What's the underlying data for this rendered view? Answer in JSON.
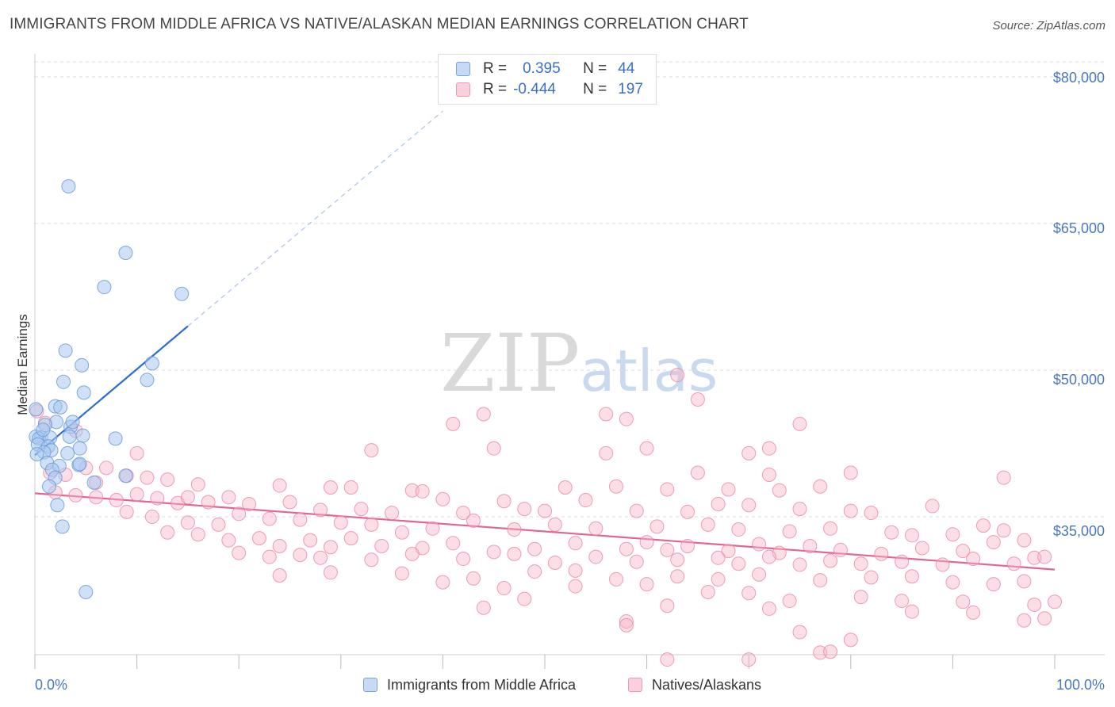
{
  "header": {
    "title": "IMMIGRANTS FROM MIDDLE AFRICA VS NATIVE/ALASKAN MEDIAN EARNINGS CORRELATION CHART",
    "source": "Source: ZipAtlas.com"
  },
  "watermark": {
    "zip": "ZIP",
    "atlas": "atlas"
  },
  "legend": {
    "rows": [
      {
        "r_label": "R =",
        "r_value": "0.395",
        "n_label": "N =",
        "n_value": "44",
        "color": "#a9c8f0"
      },
      {
        "r_label": "R =",
        "r_value": "-0.444",
        "n_label": "N =",
        "n_value": "197",
        "color": "#f7b6c8"
      }
    ]
  },
  "bottom_legend": {
    "series1": "Immigrants from Middle Africa",
    "series2": "Natives/Alaskans"
  },
  "colors": {
    "blue_fill": "#a9c8f0",
    "blue_stroke": "#6a9bd8",
    "blue_line": "#2f6fd0",
    "pink_fill": "#f7b6c8",
    "pink_stroke": "#e887a6",
    "pink_line": "#e36592",
    "tick_text": "#4a78c0",
    "grid": "#dddddd"
  },
  "chart_data": {
    "type": "scatter",
    "title": "IMMIGRANTS FROM MIDDLE AFRICA VS NATIVE/ALASKAN MEDIAN EARNINGS CORRELATION CHART",
    "xlabel": "",
    "ylabel": "Median Earnings",
    "xlim": [
      0,
      100
    ],
    "ylim": [
      20000,
      82000
    ],
    "x_tick_labels": [
      "0.0%",
      "100.0%"
    ],
    "y_ticks": [
      35000,
      50000,
      65000,
      80000
    ],
    "y_tick_labels": [
      "$35,000",
      "$50,000",
      "$65,000",
      "$80,000"
    ],
    "grid": true,
    "legend_placement": "top-center",
    "series": [
      {
        "name": "Immigrants from Middle Africa",
        "R": 0.395,
        "N": 44,
        "trend": {
          "x": [
            0,
            15
          ],
          "y": [
            41300,
            54500
          ],
          "dashed_extension_to": [
            40,
            76500
          ]
        },
        "points": [
          [
            3.3,
            68800
          ],
          [
            8.9,
            62000
          ],
          [
            6.8,
            58500
          ],
          [
            14.4,
            57800
          ],
          [
            3.0,
            52000
          ],
          [
            4.6,
            50500
          ],
          [
            11.5,
            50700
          ],
          [
            11.0,
            49000
          ],
          [
            2.8,
            48800
          ],
          [
            4.8,
            47700
          ],
          [
            2.0,
            46300
          ],
          [
            2.5,
            46200
          ],
          [
            0.1,
            46000
          ],
          [
            2.1,
            44700
          ],
          [
            1.0,
            44400
          ],
          [
            3.5,
            44200
          ],
          [
            3.7,
            44700
          ],
          [
            0.6,
            43100
          ],
          [
            0.1,
            43200
          ],
          [
            0.4,
            43000
          ],
          [
            1.5,
            43100
          ],
          [
            3.4,
            43200
          ],
          [
            4.7,
            43300
          ],
          [
            7.9,
            43000
          ],
          [
            0.3,
            42400
          ],
          [
            1.3,
            42200
          ],
          [
            1.6,
            41800
          ],
          [
            0.9,
            41600
          ],
          [
            0.2,
            41400
          ],
          [
            3.2,
            41500
          ],
          [
            4.4,
            42000
          ],
          [
            1.2,
            40500
          ],
          [
            2.4,
            40200
          ],
          [
            4.3,
            40300
          ],
          [
            4.4,
            40400
          ],
          [
            1.7,
            39800
          ],
          [
            2.0,
            39000
          ],
          [
            8.9,
            39200
          ],
          [
            5.8,
            38500
          ],
          [
            1.4,
            38100
          ],
          [
            2.2,
            36200
          ],
          [
            2.7,
            34000
          ],
          [
            5.0,
            27300
          ],
          [
            0.8,
            43900
          ]
        ]
      },
      {
        "name": "Natives/Alaskans",
        "R": -0.444,
        "N": 197,
        "trend": {
          "x": [
            0,
            100
          ],
          "y": [
            37400,
            29600
          ]
        },
        "points": [
          [
            0.2,
            45800
          ],
          [
            1.0,
            44600
          ],
          [
            4.0,
            43800
          ],
          [
            63.0,
            49500
          ],
          [
            65.0,
            47000
          ],
          [
            75.0,
            44500
          ],
          [
            44.0,
            45500
          ],
          [
            56.0,
            45500
          ],
          [
            58.0,
            45000
          ],
          [
            41.0,
            44500
          ],
          [
            60.0,
            42000
          ],
          [
            72.0,
            42000
          ],
          [
            45.0,
            42000
          ],
          [
            33.0,
            41800
          ],
          [
            56.0,
            41500
          ],
          [
            70.0,
            41500
          ],
          [
            10.0,
            41500
          ],
          [
            65.0,
            39500
          ],
          [
            72.0,
            39300
          ],
          [
            80.0,
            39500
          ],
          [
            95.0,
            39000
          ],
          [
            5.0,
            40000
          ],
          [
            7.0,
            40000
          ],
          [
            9.0,
            39200
          ],
          [
            11.0,
            39000
          ],
          [
            13.0,
            38800
          ],
          [
            1.5,
            39500
          ],
          [
            3.0,
            39300
          ],
          [
            6.0,
            38500
          ],
          [
            16.0,
            38300
          ],
          [
            24.0,
            38200
          ],
          [
            29.0,
            38000
          ],
          [
            31.0,
            38000
          ],
          [
            37.0,
            37700
          ],
          [
            38.0,
            37600
          ],
          [
            52.0,
            38000
          ],
          [
            57.0,
            38100
          ],
          [
            62.0,
            37800
          ],
          [
            68.0,
            37800
          ],
          [
            73.0,
            37700
          ],
          [
            77.0,
            38100
          ],
          [
            88.0,
            36100
          ],
          [
            4.0,
            37200
          ],
          [
            6.0,
            37000
          ],
          [
            8.0,
            36700
          ],
          [
            10.0,
            37300
          ],
          [
            12.0,
            36900
          ],
          [
            14.0,
            36400
          ],
          [
            17.0,
            36500
          ],
          [
            19.0,
            37000
          ],
          [
            21.0,
            36300
          ],
          [
            25.0,
            36500
          ],
          [
            28.0,
            35700
          ],
          [
            32.0,
            35800
          ],
          [
            35.0,
            35400
          ],
          [
            40.0,
            36800
          ],
          [
            42.0,
            35400
          ],
          [
            46.0,
            36600
          ],
          [
            48.0,
            35800
          ],
          [
            50.0,
            35600
          ],
          [
            54.0,
            36700
          ],
          [
            59.0,
            35600
          ],
          [
            64.0,
            35500
          ],
          [
            67.0,
            36300
          ],
          [
            70.0,
            36200
          ],
          [
            75.0,
            35800
          ],
          [
            80.0,
            35600
          ],
          [
            82.0,
            35400
          ],
          [
            9.0,
            35500
          ],
          [
            11.5,
            35000
          ],
          [
            15.0,
            34400
          ],
          [
            18.0,
            34200
          ],
          [
            20.0,
            35300
          ],
          [
            23.0,
            34800
          ],
          [
            26.0,
            34700
          ],
          [
            30.0,
            34400
          ],
          [
            33.0,
            34200
          ],
          [
            36.0,
            33400
          ],
          [
            39.0,
            33800
          ],
          [
            43.0,
            34600
          ],
          [
            47.0,
            33700
          ],
          [
            51.0,
            34200
          ],
          [
            55.0,
            33800
          ],
          [
            61.0,
            34000
          ],
          [
            66.0,
            34200
          ],
          [
            69.0,
            33700
          ],
          [
            74.0,
            33500
          ],
          [
            78.0,
            33800
          ],
          [
            84.0,
            33400
          ],
          [
            86.0,
            33100
          ],
          [
            90.0,
            33200
          ],
          [
            93.0,
            34100
          ],
          [
            95.0,
            33600
          ],
          [
            97.0,
            32600
          ],
          [
            13.0,
            33400
          ],
          [
            16.0,
            33200
          ],
          [
            19.0,
            32600
          ],
          [
            22.0,
            32800
          ],
          [
            24.0,
            32000
          ],
          [
            27.0,
            32600
          ],
          [
            29.0,
            31900
          ],
          [
            31.0,
            32800
          ],
          [
            34.0,
            32000
          ],
          [
            38.0,
            31800
          ],
          [
            41.0,
            32300
          ],
          [
            45.0,
            31400
          ],
          [
            49.0,
            31700
          ],
          [
            53.0,
            32300
          ],
          [
            58.0,
            31700
          ],
          [
            60.0,
            32400
          ],
          [
            62.0,
            31600
          ],
          [
            64.0,
            32000
          ],
          [
            68.0,
            31500
          ],
          [
            71.0,
            32200
          ],
          [
            73.0,
            31300
          ],
          [
            76.0,
            32000
          ],
          [
            79.0,
            31600
          ],
          [
            83.0,
            31200
          ],
          [
            87.0,
            31800
          ],
          [
            91.0,
            31500
          ],
          [
            94.0,
            32400
          ],
          [
            98.0,
            30800
          ],
          [
            20.0,
            31300
          ],
          [
            23.0,
            30900
          ],
          [
            26.0,
            31100
          ],
          [
            28.0,
            30800
          ],
          [
            33.0,
            30600
          ],
          [
            37.0,
            31200
          ],
          [
            42.0,
            30700
          ],
          [
            47.0,
            31200
          ],
          [
            51.0,
            30300
          ],
          [
            55.0,
            30900
          ],
          [
            59.0,
            30400
          ],
          [
            63.0,
            30600
          ],
          [
            67.0,
            30800
          ],
          [
            69.0,
            30200
          ],
          [
            72.0,
            30900
          ],
          [
            75.0,
            30100
          ],
          [
            78.0,
            30500
          ],
          [
            81.0,
            30200
          ],
          [
            85.0,
            30400
          ],
          [
            89.0,
            30100
          ],
          [
            92.0,
            30700
          ],
          [
            96.0,
            30200
          ],
          [
            99.0,
            30900
          ],
          [
            24.0,
            29000
          ],
          [
            29.0,
            29300
          ],
          [
            36.0,
            29200
          ],
          [
            43.0,
            28700
          ],
          [
            49.0,
            29400
          ],
          [
            53.0,
            29500
          ],
          [
            57.0,
            28600
          ],
          [
            63.0,
            28900
          ],
          [
            67.0,
            28600
          ],
          [
            71.0,
            29100
          ],
          [
            77.0,
            28500
          ],
          [
            82.0,
            28800
          ],
          [
            86.0,
            28900
          ],
          [
            90.0,
            28300
          ],
          [
            94.0,
            28100
          ],
          [
            97.0,
            28400
          ],
          [
            40.0,
            28300
          ],
          [
            46.0,
            27700
          ],
          [
            53.0,
            27900
          ],
          [
            60.0,
            28100
          ],
          [
            66.0,
            27300
          ],
          [
            70.0,
            27200
          ],
          [
            74.0,
            26400
          ],
          [
            81.0,
            26800
          ],
          [
            85.0,
            26400
          ],
          [
            91.0,
            26300
          ],
          [
            98.0,
            26000
          ],
          [
            100.0,
            26300
          ],
          [
            44.0,
            25700
          ],
          [
            48.0,
            26600
          ],
          [
            58.0,
            24300
          ],
          [
            62.0,
            25900
          ],
          [
            72.0,
            25600
          ],
          [
            86.0,
            25300
          ],
          [
            92.0,
            25200
          ],
          [
            97.0,
            24400
          ],
          [
            99.0,
            24600
          ],
          [
            58.0,
            23900
          ],
          [
            75.0,
            23200
          ],
          [
            80.0,
            22400
          ],
          [
            77.0,
            21100
          ],
          [
            78.0,
            21200
          ],
          [
            62.0,
            20400
          ],
          [
            70.0,
            20400
          ],
          [
            2.0,
            37500
          ],
          [
            15.0,
            37000
          ]
        ]
      }
    ]
  }
}
